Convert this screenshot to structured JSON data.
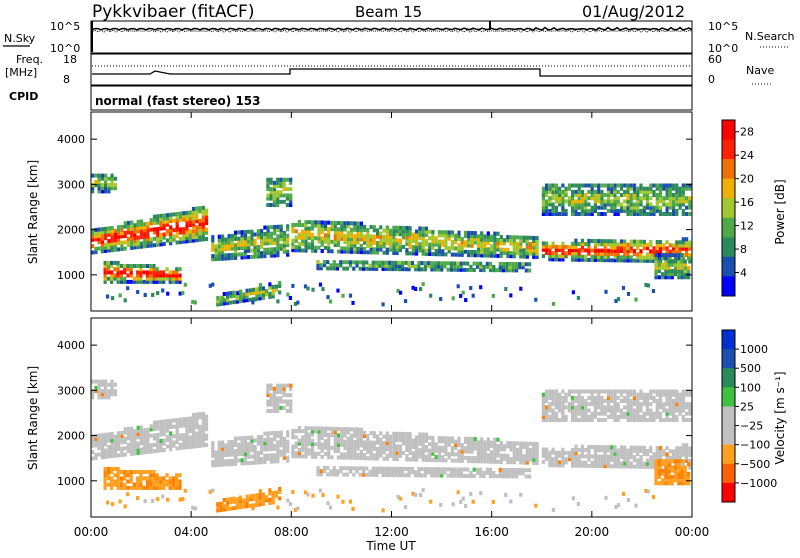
{
  "header": {
    "station": "Pykkvibaer (fitACF)",
    "beam": "Beam 15",
    "date": "01/Aug/2012"
  },
  "top_panel": {
    "left_label": "N.Sky",
    "right_label": "N.Search",
    "left_ticks": [
      "10^5",
      "10^0"
    ],
    "right_ticks": [
      "10^5",
      "10^0"
    ]
  },
  "freq_panel": {
    "left_label_1": "Freq.",
    "left_label_2": "[MHz]",
    "left_ticks": [
      "18",
      "8"
    ],
    "right_label": "Nave",
    "right_ticks": [
      "60",
      "0"
    ]
  },
  "cpid": {
    "label": "CPID",
    "text": "normal (fast stereo) 153"
  },
  "colors": {
    "power": [
      "#0000ff",
      "#1a4fb0",
      "#2c8a5a",
      "#4fa84a",
      "#a0c830",
      "#f0b000",
      "#f07000",
      "#ff2000",
      "#ff0000"
    ],
    "velocity": [
      "#ff0000",
      "#ff6000",
      "#ffa020",
      "#c0c0c0",
      "#c0c0c0",
      "#40c040",
      "#2a8a5a",
      "#1a4fb0",
      "#0030d0"
    ]
  },
  "chart_data": [
    {
      "type": "heatmap",
      "panel": "power",
      "xlabel": "Time UT",
      "ylabel": "Slant Range [km]",
      "x_ticks": [
        "00:00",
        "04:00",
        "08:00",
        "12:00",
        "16:00",
        "20:00",
        "00:00"
      ],
      "y_ticks": [
        1000,
        2000,
        3000,
        4000
      ],
      "ylim": [
        200,
        4600
      ],
      "xlim_hours": [
        0,
        24
      ],
      "colorbar_label": "Power [dB]",
      "colorbar_ticks": [
        4,
        8,
        12,
        16,
        20,
        24,
        28
      ],
      "colorbar_range": [
        0,
        30
      ]
    },
    {
      "type": "heatmap",
      "panel": "velocity",
      "xlabel": "Time UT",
      "ylabel": "Slant Range [km]",
      "x_ticks": [
        "00:00",
        "04:00",
        "08:00",
        "12:00",
        "16:00",
        "20:00",
        "00:00"
      ],
      "y_ticks": [
        1000,
        2000,
        3000,
        4000
      ],
      "ylim": [
        200,
        4600
      ],
      "xlim_hours": [
        0,
        24
      ],
      "colorbar_label": "Velocity [m s⁻¹]",
      "colorbar_ticks": [
        "1000",
        "500",
        "100",
        "25",
        "−25",
        "−100",
        "−500",
        "−1000"
      ]
    }
  ]
}
